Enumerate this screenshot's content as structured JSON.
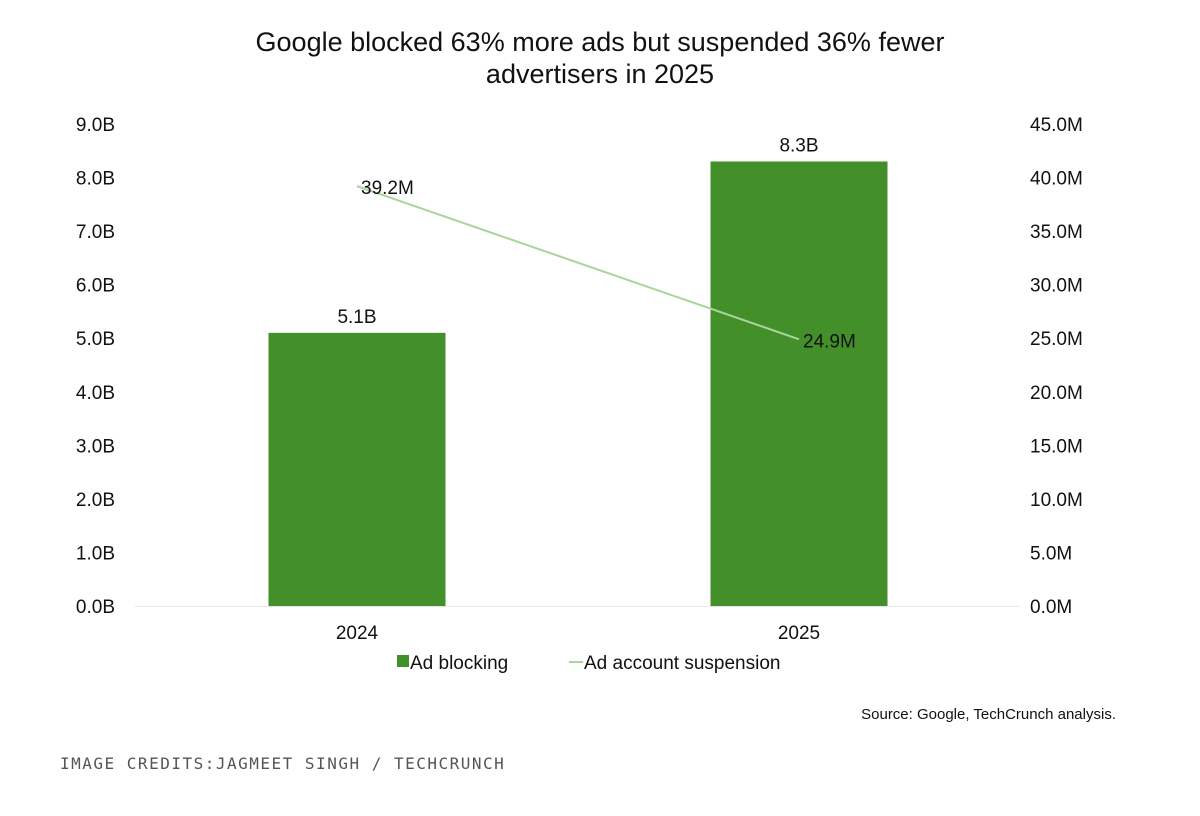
{
  "chart_data": {
    "type": "bar",
    "title": "Google blocked 63% more ads but suspended 36% fewer advertisers in 2025",
    "title_lines": [
      "Google blocked 63% more ads but suspended 36% fewer",
      "advertisers in 2025"
    ],
    "categories": [
      "2024",
      "2025"
    ],
    "series": [
      {
        "name": "Ad blocking",
        "type": "bar",
        "axis": "left",
        "unit": "B",
        "values": [
          5.1,
          8.3
        ],
        "labels": [
          "5.1B",
          "8.3B"
        ],
        "color": "#43902a"
      },
      {
        "name": "Ad account suspension",
        "type": "line",
        "axis": "right",
        "unit": "M",
        "values": [
          39.2,
          24.9
        ],
        "labels": [
          "39.2M",
          "24.9M"
        ],
        "color": "#a9d49c"
      }
    ],
    "y_left": {
      "ylim": [
        0,
        9
      ],
      "ticks": [
        "0.0B",
        "1.0B",
        "2.0B",
        "3.0B",
        "4.0B",
        "5.0B",
        "6.0B",
        "7.0B",
        "8.0B",
        "9.0B"
      ]
    },
    "y_right": {
      "ylim": [
        0,
        45
      ],
      "ticks": [
        "0.0M",
        "5.0M",
        "10.0M",
        "15.0M",
        "20.0M",
        "25.0M",
        "30.0M",
        "35.0M",
        "40.0M",
        "45.0M"
      ]
    },
    "grid": false,
    "legend": "bottom"
  },
  "source": "Source: Google, TechCrunch analysis.",
  "credits": "IMAGE CREDITS:JAGMEET SINGH / TECHCRUNCH"
}
